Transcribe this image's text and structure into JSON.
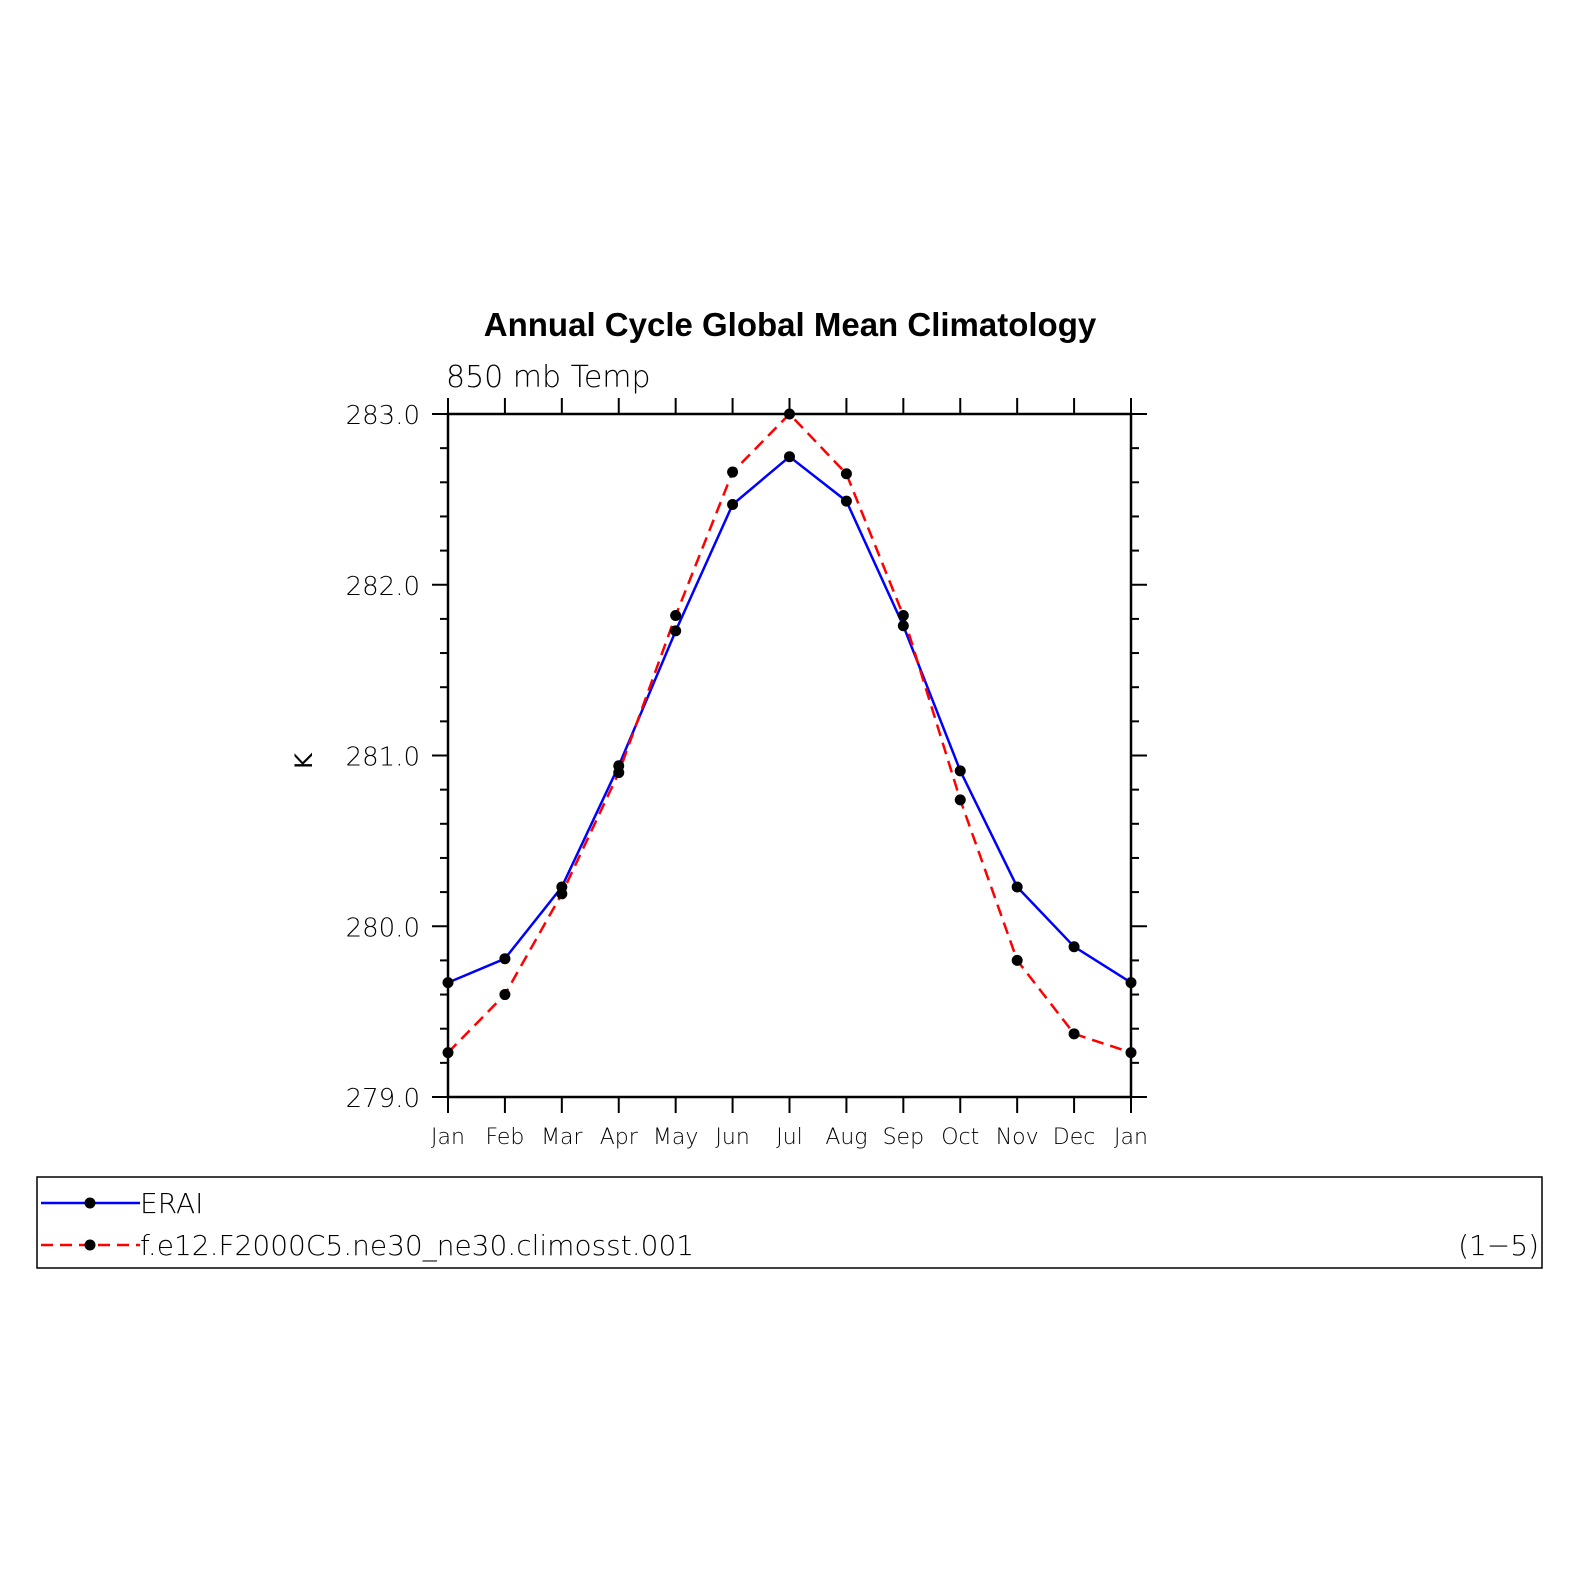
{
  "chart_data": {
    "type": "line",
    "title": "Annual Cycle Global Mean Climatology",
    "subtitle": "850 mb Temp",
    "ylabel": "K",
    "xlabel": "",
    "categories": [
      "Jan",
      "Feb",
      "Mar",
      "Apr",
      "May",
      "Jun",
      "Jul",
      "Aug",
      "Sep",
      "Oct",
      "Nov",
      "Dec",
      "Jan"
    ],
    "ylim": [
      279.0,
      283.0
    ],
    "yticks": [
      "279.0",
      "280.0",
      "281.0",
      "282.0",
      "283.0"
    ],
    "grid": false,
    "series": [
      {
        "name": "ERAI",
        "color": "#0000ff",
        "style": "solid",
        "values": [
          279.67,
          279.81,
          280.23,
          280.94,
          281.73,
          282.47,
          282.75,
          282.49,
          281.76,
          280.91,
          280.23,
          279.88,
          279.67
        ]
      },
      {
        "name": "f.e12.F2000C5.ne30_ne30.climosst.001",
        "color": "#ff0000",
        "style": "dashed",
        "values": [
          279.26,
          279.6,
          280.19,
          280.9,
          281.82,
          282.66,
          283.0,
          282.65,
          281.82,
          280.74,
          279.8,
          279.37,
          279.26
        ]
      }
    ],
    "legend": {
      "placement": "bottom",
      "annotation": "(1−5)"
    }
  }
}
